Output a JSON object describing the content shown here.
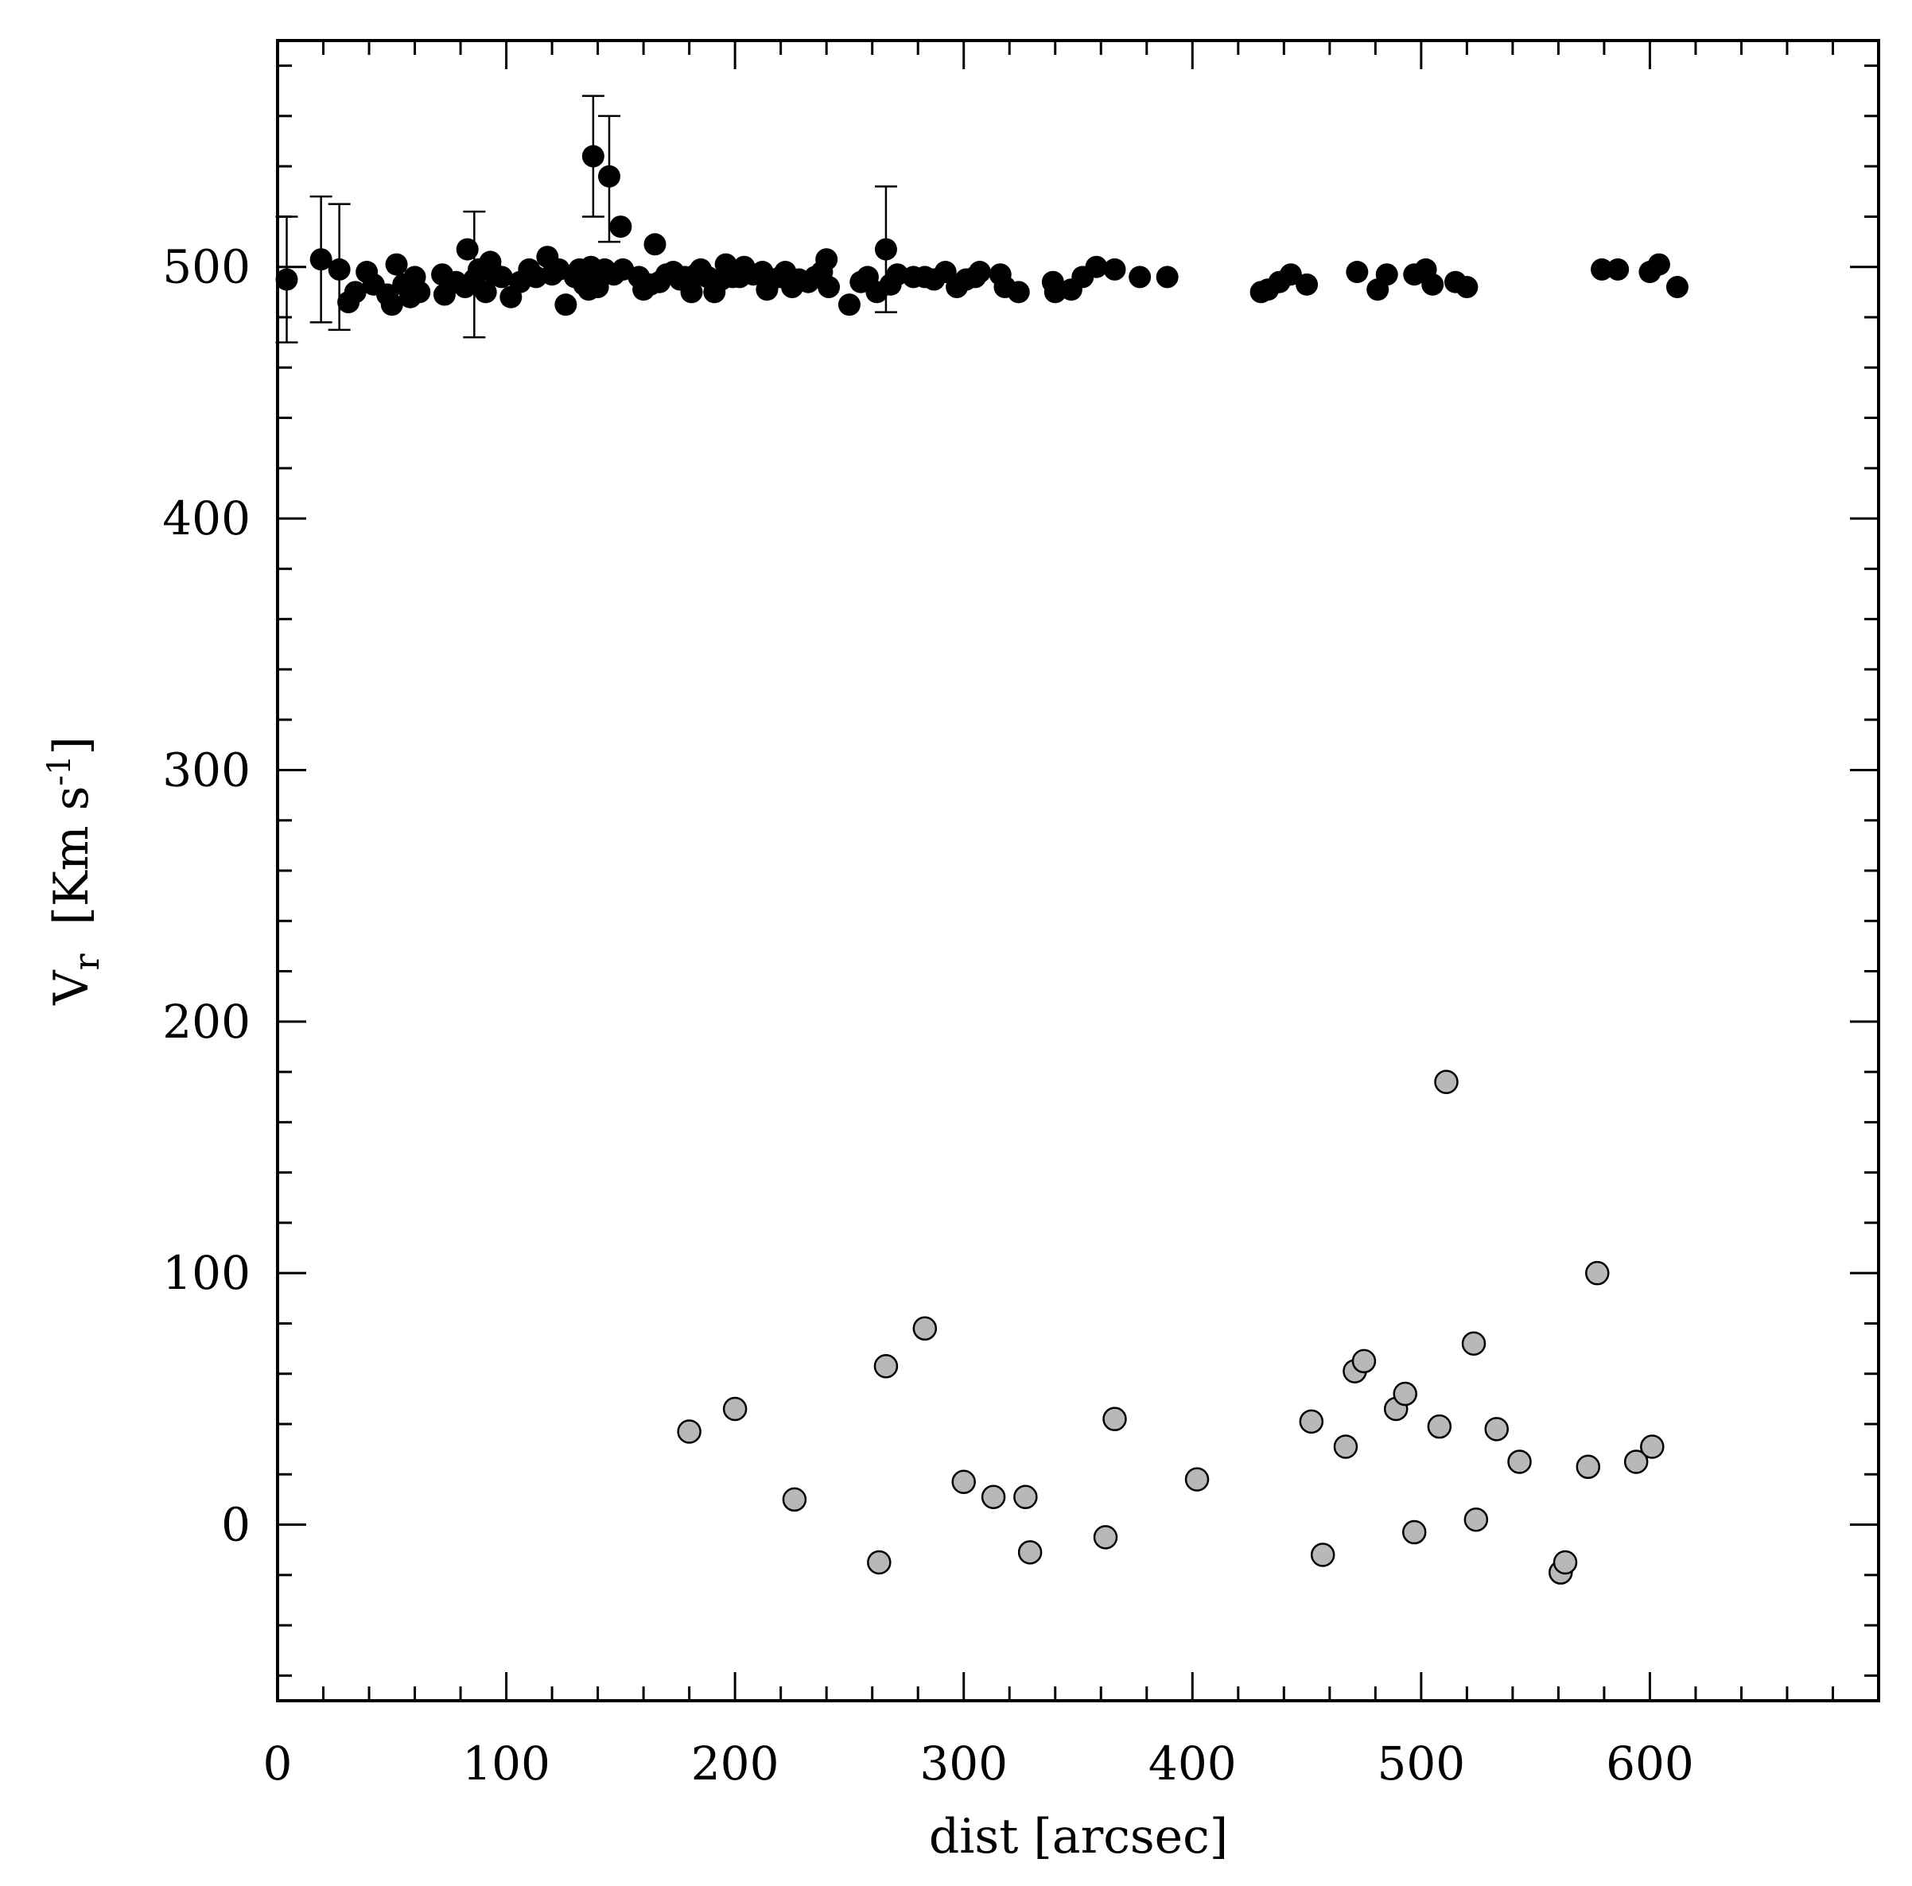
{
  "chart_data": {
    "type": "scatter",
    "title": "",
    "xlabel": "dist [arcsec]",
    "ylabel_main": "V",
    "ylabel_sub": "r",
    "ylabel_unit": "[Km s",
    "ylabel_exp": "-1",
    "ylabel_close": "]",
    "xlim": [
      0,
      700
    ],
    "ylim": [
      -70,
      590
    ],
    "grid": false,
    "legend": "none",
    "x_ticks": [
      0,
      100,
      200,
      300,
      400,
      500,
      600
    ],
    "y_ticks": [
      0,
      100,
      200,
      300,
      400,
      500
    ],
    "series": [
      {
        "marker": "filled-black",
        "color": "#000000",
        "points": [
          [
            4,
            495
          ],
          [
            19,
            503
          ],
          [
            27,
            499
          ],
          [
            31,
            486
          ],
          [
            34,
            490
          ],
          [
            39,
            498
          ],
          [
            42,
            493
          ],
          [
            48,
            489
          ],
          [
            50,
            485
          ],
          [
            52,
            501
          ],
          [
            55,
            493
          ],
          [
            58,
            488
          ],
          [
            60,
            496
          ],
          [
            62,
            490
          ],
          [
            72,
            497
          ],
          [
            73,
            489
          ],
          [
            78,
            494
          ],
          [
            82,
            492
          ],
          [
            83,
            507
          ],
          [
            86,
            495
          ],
          [
            88,
            499
          ],
          [
            91,
            490
          ],
          [
            93,
            502
          ],
          [
            95,
            497
          ],
          [
            98,
            496
          ],
          [
            102,
            488
          ],
          [
            106,
            494
          ],
          [
            110,
            499
          ],
          [
            113,
            496
          ],
          [
            118,
            504
          ],
          [
            120,
            497
          ],
          [
            123,
            499
          ],
          [
            126,
            485
          ],
          [
            130,
            496
          ],
          [
            132,
            499
          ],
          [
            134,
            493
          ],
          [
            136,
            491
          ],
          [
            137,
            500
          ],
          [
            138,
            544
          ],
          [
            140,
            492
          ],
          [
            141,
            496
          ],
          [
            143,
            499
          ],
          [
            145,
            536
          ],
          [
            147,
            497
          ],
          [
            150,
            516
          ],
          [
            151,
            499
          ],
          [
            158,
            496
          ],
          [
            160,
            491
          ],
          [
            163,
            493
          ],
          [
            165,
            509
          ],
          [
            167,
            494
          ],
          [
            170,
            497
          ],
          [
            173,
            498
          ],
          [
            176,
            495
          ],
          [
            178,
            496
          ],
          [
            181,
            490
          ],
          [
            183,
            497
          ],
          [
            185,
            499
          ],
          [
            188,
            496
          ],
          [
            191,
            490
          ],
          [
            194,
            495
          ],
          [
            196,
            501
          ],
          [
            199,
            496
          ],
          [
            202,
            496
          ],
          [
            204,
            500
          ],
          [
            208,
            497
          ],
          [
            212,
            498
          ],
          [
            214,
            491
          ],
          [
            216,
            495
          ],
          [
            220,
            496
          ],
          [
            222,
            498
          ],
          [
            225,
            492
          ],
          [
            228,
            495
          ],
          [
            232,
            494
          ],
          [
            235,
            496
          ],
          [
            238,
            498
          ],
          [
            240,
            503
          ],
          [
            241,
            492
          ],
          [
            250,
            485
          ],
          [
            255,
            494
          ],
          [
            258,
            496
          ],
          [
            262,
            490
          ],
          [
            266,
            507
          ],
          [
            268,
            493
          ],
          [
            271,
            497
          ],
          [
            278,
            496
          ],
          [
            283,
            496
          ],
          [
            287,
            495
          ],
          [
            292,
            498
          ],
          [
            297,
            492
          ],
          [
            301,
            495
          ],
          [
            305,
            496
          ],
          [
            307,
            498
          ],
          [
            316,
            497
          ],
          [
            318,
            492
          ],
          [
            324,
            490
          ],
          [
            339,
            494
          ],
          [
            340,
            490
          ],
          [
            347,
            491
          ],
          [
            352,
            496
          ],
          [
            358,
            500
          ],
          [
            366,
            499
          ],
          [
            377,
            496
          ],
          [
            389,
            496
          ],
          [
            430,
            490
          ],
          [
            433,
            491
          ],
          [
            438,
            494
          ],
          [
            443,
            497
          ],
          [
            450,
            493
          ],
          [
            472,
            498
          ],
          [
            481,
            491
          ],
          [
            485,
            497
          ],
          [
            497,
            497
          ],
          [
            502,
            499
          ],
          [
            505,
            493
          ],
          [
            515,
            494
          ],
          [
            520,
            492
          ],
          [
            579,
            499
          ],
          [
            586,
            499
          ],
          [
            600,
            498
          ],
          [
            604,
            501
          ],
          [
            612,
            492
          ]
        ]
      },
      {
        "marker": "open-gray",
        "color": "#b8b8b8",
        "points": [
          [
            180,
            37
          ],
          [
            200,
            46
          ],
          [
            226,
            10
          ],
          [
            263,
            -15
          ],
          [
            266,
            63
          ],
          [
            283,
            78
          ],
          [
            300,
            17
          ],
          [
            313,
            11
          ],
          [
            327,
            11
          ],
          [
            329,
            -11
          ],
          [
            362,
            -5
          ],
          [
            366,
            42
          ],
          [
            402,
            18
          ],
          [
            452,
            41
          ],
          [
            457,
            -12
          ],
          [
            467,
            31
          ],
          [
            471,
            61
          ],
          [
            475,
            65
          ],
          [
            489,
            46
          ],
          [
            493,
            52
          ],
          [
            497,
            -3
          ],
          [
            508,
            39
          ],
          [
            511,
            176
          ],
          [
            523,
            72
          ],
          [
            524,
            2
          ],
          [
            533,
            38
          ],
          [
            543,
            25
          ],
          [
            561,
            -19
          ],
          [
            563,
            -15
          ],
          [
            573,
            23
          ],
          [
            577,
            100
          ],
          [
            594,
            25
          ],
          [
            601,
            31
          ]
        ]
      }
    ],
    "error_bars": [
      {
        "x": 4,
        "low": 470,
        "high": 520
      },
      {
        "x": 19,
        "low": 478,
        "high": 528
      },
      {
        "x": 27,
        "low": 475,
        "high": 525
      },
      {
        "x": 86,
        "low": 472,
        "high": 522
      },
      {
        "x": 138,
        "low": 520,
        "high": 568
      },
      {
        "x": 145,
        "low": 510,
        "high": 560
      },
      {
        "x": 266,
        "low": 482,
        "high": 532
      }
    ]
  }
}
